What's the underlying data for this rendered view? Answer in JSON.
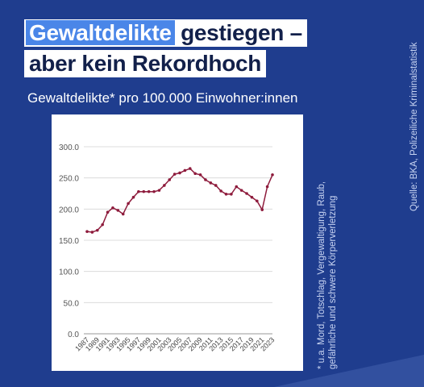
{
  "header": {
    "title_highlight": "Gewaltdelikte",
    "title_rest_line1": " gestiegen –",
    "title_line2": "aber kein Rekordhoch",
    "subtitle": "Gewaltdelikte* pro 100.000 Einwohner:innen"
  },
  "footnote_line1": "* u.a. Mord, Totschlag, Vergewaltigung, Raub,",
  "footnote_line2": "gefährliche und schwere Körperverletzung",
  "source": "Quelle: BKA, Polizeiliche Kriminalstatistik",
  "colors": {
    "background": "#1f3d8e",
    "highlight": "#4a86e8",
    "line": "#8e1b3c"
  },
  "chart_data": {
    "type": "line",
    "title": "",
    "xlabel": "",
    "ylabel": "",
    "ylim": [
      0,
      300
    ],
    "yticks": [
      "0.0",
      "50.0",
      "100.0",
      "150.0",
      "200.0",
      "250.0",
      "300.0"
    ],
    "xtick_labels": [
      "1987",
      "1989",
      "1991",
      "1993",
      "1995",
      "1997",
      "1999",
      "2001",
      "2003",
      "2005",
      "2007",
      "2009",
      "2011",
      "2013",
      "2015",
      "2017",
      "2019",
      "2021",
      "2023"
    ],
    "grid": "horizontal",
    "legend": "none",
    "x": [
      1987,
      1988,
      1989,
      1990,
      1991,
      1992,
      1993,
      1994,
      1995,
      1996,
      1997,
      1998,
      1999,
      2000,
      2001,
      2002,
      2003,
      2004,
      2005,
      2006,
      2007,
      2008,
      2009,
      2010,
      2011,
      2012,
      2013,
      2014,
      2015,
      2016,
      2017,
      2018,
      2019,
      2020,
      2021,
      2022,
      2023
    ],
    "values": [
      164,
      163,
      166,
      175,
      195,
      202,
      198,
      192,
      209,
      219,
      228,
      228,
      228,
      228,
      230,
      238,
      247,
      256,
      258,
      262,
      265,
      257,
      255,
      247,
      242,
      238,
      229,
      224,
      224,
      236,
      230,
      225,
      219,
      213,
      199,
      236,
      255
    ]
  }
}
